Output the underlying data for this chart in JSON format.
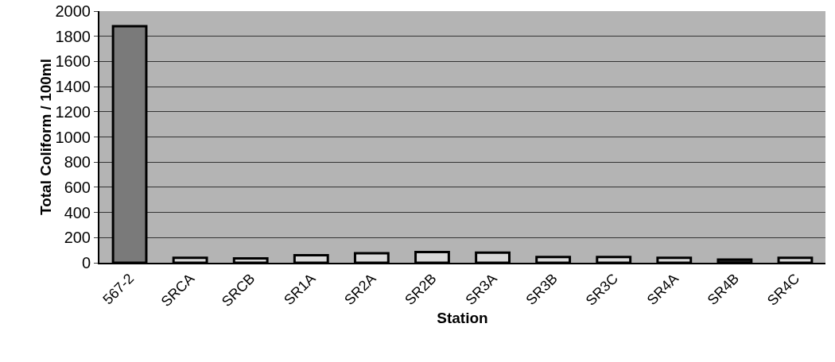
{
  "chart_data": {
    "type": "bar",
    "xlabel": "Station",
    "ylabel": "Total Coliform / 100ml",
    "categories": [
      "567-2",
      "SRCA",
      "SRCB",
      "SR1A",
      "SR2A",
      "SR2B",
      "SR3A",
      "SR3B",
      "SR3C",
      "SR4A",
      "SR4B",
      "SR4C"
    ],
    "values": [
      1880,
      40,
      35,
      60,
      75,
      85,
      80,
      45,
      45,
      40,
      25,
      40
    ],
    "colors": [
      "#7a7a7a",
      "#d8d8d8",
      "#d8d8d8",
      "#d8d8d8",
      "#d8d8d8",
      "#d8d8d8",
      "#d8d8d8",
      "#d8d8d8",
      "#d8d8d8",
      "#d8d8d8",
      "#303030",
      "#d8d8d8"
    ],
    "ylim": [
      0,
      2000
    ],
    "yticks": [
      0,
      200,
      400,
      600,
      800,
      1000,
      1200,
      1400,
      1600,
      1800,
      2000
    ],
    "grid": "y"
  }
}
